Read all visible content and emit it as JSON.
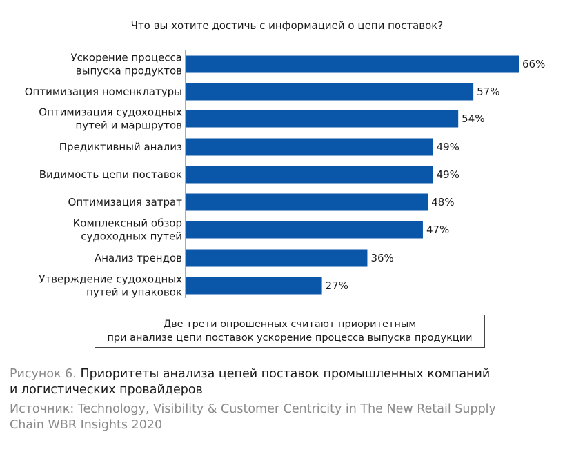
{
  "chart_data": {
    "type": "bar",
    "orientation": "horizontal",
    "title": "Что вы хотите достичь с информацией о цепи поставок?",
    "categories": [
      [
        "Ускорение процесса",
        "выпуска продуктов"
      ],
      [
        "Оптимизация номенклатуры"
      ],
      [
        "Оптимизация судоходных",
        "путей и маршрутов"
      ],
      [
        "Предиктивный анализ"
      ],
      [
        "Видимость цепи поставок"
      ],
      [
        "Оптимизация затрат"
      ],
      [
        "Комплексный обзор",
        "судоходных путей"
      ],
      [
        "Анализ трендов"
      ],
      [
        "Утверждение судоходных",
        "путей и упаковок"
      ]
    ],
    "values": [
      66,
      57,
      54,
      49,
      49,
      48,
      47,
      36,
      27
    ],
    "value_labels": [
      "66%",
      "57%",
      "54%",
      "49%",
      "49%",
      "48%",
      "47%",
      "36%",
      "27%"
    ],
    "unit": "%",
    "xlim": [
      0,
      66
    ],
    "grid": false,
    "bar_color": "#0a56a8"
  },
  "callout": {
    "line1": "Две трети опрошенных считают приоритетным",
    "line2": "при анализе цепи поставок ускорение процесса выпуска продукции"
  },
  "caption": {
    "label": "Рисунок 6.",
    "title_line1": "Приоритеты анализа цепей поставок промышленных компаний",
    "title_line2": "и логистических провайдеров"
  },
  "source": {
    "line1": "Источник: Technology, Visibility & Customer Centricity in The New Retail Supply",
    "line2": "Chain WBR Insights 2020"
  }
}
